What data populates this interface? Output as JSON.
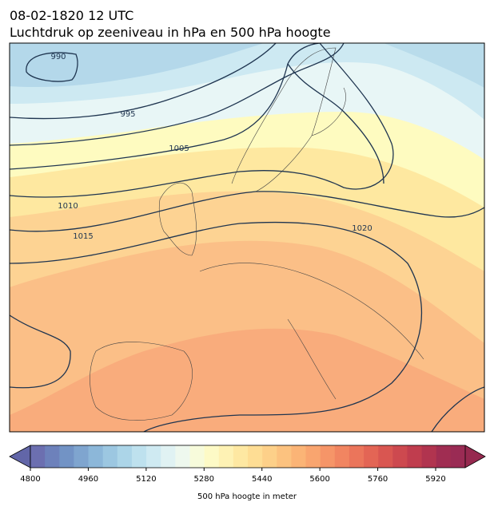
{
  "header": {
    "date": "08-02-1820 12 UTC",
    "title": "Luchtdruk op zeeniveau in hPa en 500 hPa hoogte"
  },
  "map": {
    "isobar_labels": [
      "990",
      "995",
      "1005",
      "1010",
      "1015",
      "1020"
    ]
  },
  "colorbar": {
    "ticks": [
      4800,
      4960,
      5120,
      5280,
      5440,
      5600,
      5760,
      5920
    ],
    "label": "500 hPa hoogte in meter"
  }
}
